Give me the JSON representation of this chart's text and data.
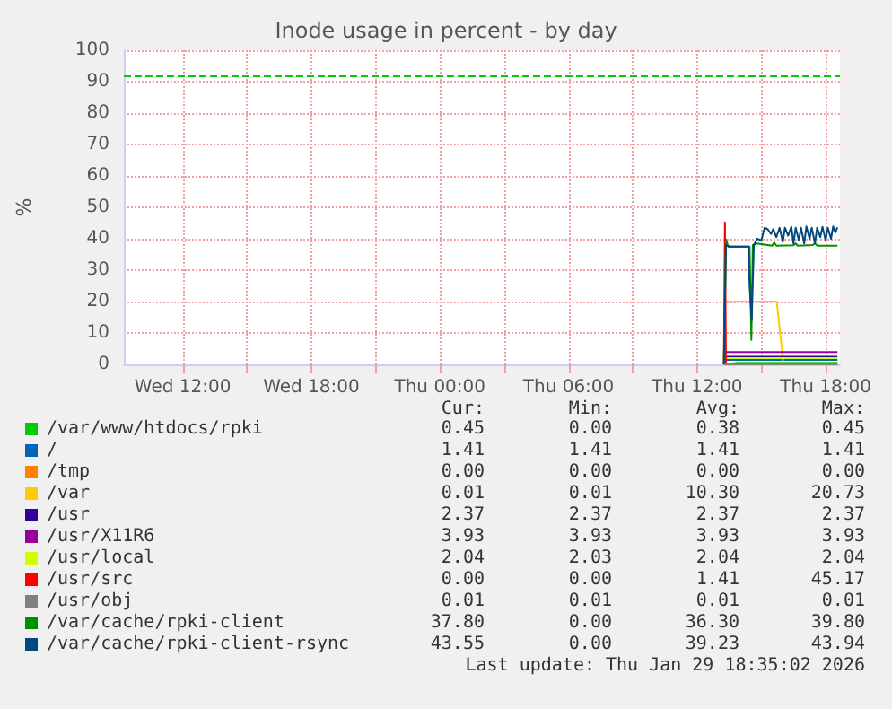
{
  "chart_data": {
    "type": "line",
    "title": "Inode usage in percent - by day",
    "ylabel": "%",
    "xlim": [
      "2026-01-28T09:15",
      "2026-01-29T18:40"
    ],
    "xticks": [
      {
        "value": "2026-01-28T12:00",
        "label": "Wed 12:00"
      },
      {
        "value": "2026-01-28T15:00",
        "label": null
      },
      {
        "value": "2026-01-28T18:00",
        "label": "Wed 18:00"
      },
      {
        "value": "2026-01-28T21:00",
        "label": null
      },
      {
        "value": "2026-01-29T00:00",
        "label": "Thu 00:00"
      },
      {
        "value": "2026-01-29T03:00",
        "label": null
      },
      {
        "value": "2026-01-29T06:00",
        "label": "Thu 06:00"
      },
      {
        "value": "2026-01-29T09:00",
        "label": null
      },
      {
        "value": "2026-01-29T12:00",
        "label": "Thu 12:00"
      },
      {
        "value": "2026-01-29T15:00",
        "label": null
      },
      {
        "value": "2026-01-29T18:00",
        "label": "Thu 18:00"
      }
    ],
    "ylim": [
      0,
      100
    ],
    "yticks": [
      0,
      10,
      20,
      30,
      40,
      50,
      60,
      70,
      80,
      90,
      100
    ],
    "grid": true,
    "legend": "bottom",
    "marker": "none",
    "line_style": "solid",
    "ref_lines": [
      {
        "axis": "y",
        "value": 92,
        "color": "#00cc00",
        "line_style": "dashed"
      }
    ],
    "series": [
      {
        "name": "/var/www/htdocs/rpki",
        "color": "#00cc00",
        "x": [
          "2026-01-29T13:15",
          "2026-01-29T13:54",
          "2026-01-29T18:33"
        ],
        "values": [
          0,
          0.5,
          0.5
        ]
      },
      {
        "name": "/",
        "color": "#0066b3",
        "x": [
          "2026-01-29T13:15",
          "2026-01-29T18:33"
        ],
        "values": [
          1.4,
          1.4
        ]
      },
      {
        "name": "/tmp",
        "color": "#ff8000"
      },
      {
        "name": "/var",
        "color": "#ffcc00",
        "x": [
          "2026-01-29T13:15",
          "2026-01-29T13:24",
          "2026-01-29T15:43",
          "2026-01-29T16:02",
          "2026-01-29T18:33"
        ],
        "values": [
          20.7,
          20,
          20,
          0,
          0
        ]
      },
      {
        "name": "/usr",
        "color": "#330099",
        "x": [
          "2026-01-29T13:15",
          "2026-01-29T18:33"
        ],
        "values": [
          2.4,
          2.4
        ]
      },
      {
        "name": "/usr/X11R6",
        "color": "#990099",
        "x": [
          "2026-01-29T13:15",
          "2026-01-29T18:33"
        ],
        "values": [
          3.9,
          3.9
        ]
      },
      {
        "name": "/usr/local",
        "color": "#ccff00",
        "x": [
          "2026-01-29T13:15",
          "2026-01-29T18:33"
        ],
        "values": [
          2,
          2
        ]
      },
      {
        "name": "/usr/src",
        "color": "#ff0000",
        "x": [
          "2026-01-29T13:15",
          "2026-01-29T13:18",
          "2026-01-29T13:21",
          "2026-01-29T18:33"
        ],
        "values": [
          0,
          45.2,
          0,
          0
        ]
      },
      {
        "name": "/usr/obj",
        "color": "#808080",
        "x": [
          "2026-01-29T13:15",
          "2026-01-29T18:33"
        ],
        "values": [
          0,
          0
        ]
      },
      {
        "name": "/var/cache/rpki-client",
        "color": "#008f00",
        "x": [
          "2026-01-29T13:15",
          "2026-01-29T13:21",
          "2026-01-29T13:27",
          "2026-01-29T14:27",
          "2026-01-29T14:32",
          "2026-01-29T14:36",
          "2026-01-29T14:48",
          "2026-01-29T15:30",
          "2026-01-29T15:36",
          "2026-01-29T15:42",
          "2026-01-29T16:30",
          "2026-01-29T16:36",
          "2026-01-29T16:42",
          "2026-01-29T17:24",
          "2026-01-29T17:30",
          "2026-01-29T17:36",
          "2026-01-29T18:33"
        ],
        "values": [
          0,
          39.8,
          37.5,
          37.5,
          7.8,
          38,
          38.5,
          37.8,
          38.8,
          37.8,
          37.9,
          38.5,
          37.8,
          38,
          38.6,
          37.8,
          37.8
        ]
      },
      {
        "name": "/var/cache/rpki-client-rsync",
        "color": "#00487d",
        "x": [
          "2026-01-29T13:15",
          "2026-01-29T13:21",
          "2026-01-29T13:30",
          "2026-01-29T14:24",
          "2026-01-29T14:27",
          "2026-01-29T14:33",
          "2026-01-29T14:39",
          "2026-01-29T14:48",
          "2026-01-29T15:00",
          "2026-01-29T15:09",
          "2026-01-29T15:18",
          "2026-01-29T15:27",
          "2026-01-29T15:33",
          "2026-01-29T15:42",
          "2026-01-29T15:51",
          "2026-01-29T16:00",
          "2026-01-29T16:06",
          "2026-01-29T16:15",
          "2026-01-29T16:24",
          "2026-01-29T16:30",
          "2026-01-29T16:36",
          "2026-01-29T16:45",
          "2026-01-29T16:51",
          "2026-01-29T17:00",
          "2026-01-29T17:06",
          "2026-01-29T17:15",
          "2026-01-29T17:21",
          "2026-01-29T17:30",
          "2026-01-29T17:36",
          "2026-01-29T17:45",
          "2026-01-29T17:51",
          "2026-01-29T18:00",
          "2026-01-29T18:06",
          "2026-01-29T18:15",
          "2026-01-29T18:21",
          "2026-01-29T18:27",
          "2026-01-29T18:33"
        ],
        "values": [
          0,
          38,
          37.5,
          37.5,
          25,
          14,
          38,
          40,
          39.5,
          43.5,
          43,
          41.5,
          43,
          40.5,
          43.5,
          39,
          43.5,
          41,
          43.8,
          38.5,
          43.5,
          39.5,
          43.5,
          38.5,
          43.9,
          40,
          43.5,
          38.5,
          43.5,
          40.5,
          43.8,
          39.5,
          43.5,
          40,
          43.9,
          42,
          43.6
        ]
      }
    ],
    "annotations": [
      "Cur:",
      "Min:",
      "Avg:",
      "Max:",
      "0.45",
      "0.00",
      "0.38",
      "0.45",
      "1.41",
      "1.41",
      "1.41",
      "1.41",
      "0.00",
      "0.00",
      "0.00",
      "0.00",
      "0.01",
      "0.01",
      "10.30",
      "20.73",
      "2.37",
      "2.37",
      "2.37",
      "2.37",
      "3.93",
      "3.93",
      "3.93",
      "3.93",
      "2.04",
      "2.03",
      "2.04",
      "2.04",
      "0.00",
      "0.00",
      "1.41",
      "45.17",
      "0.01",
      "0.01",
      "0.01",
      "0.01",
      "37.80",
      "0.00",
      "36.30",
      "39.80",
      "43.55",
      "0.00",
      "39.23",
      "43.94",
      "Last update: Thu Jan 29 18:35:02 2026"
    ]
  }
}
